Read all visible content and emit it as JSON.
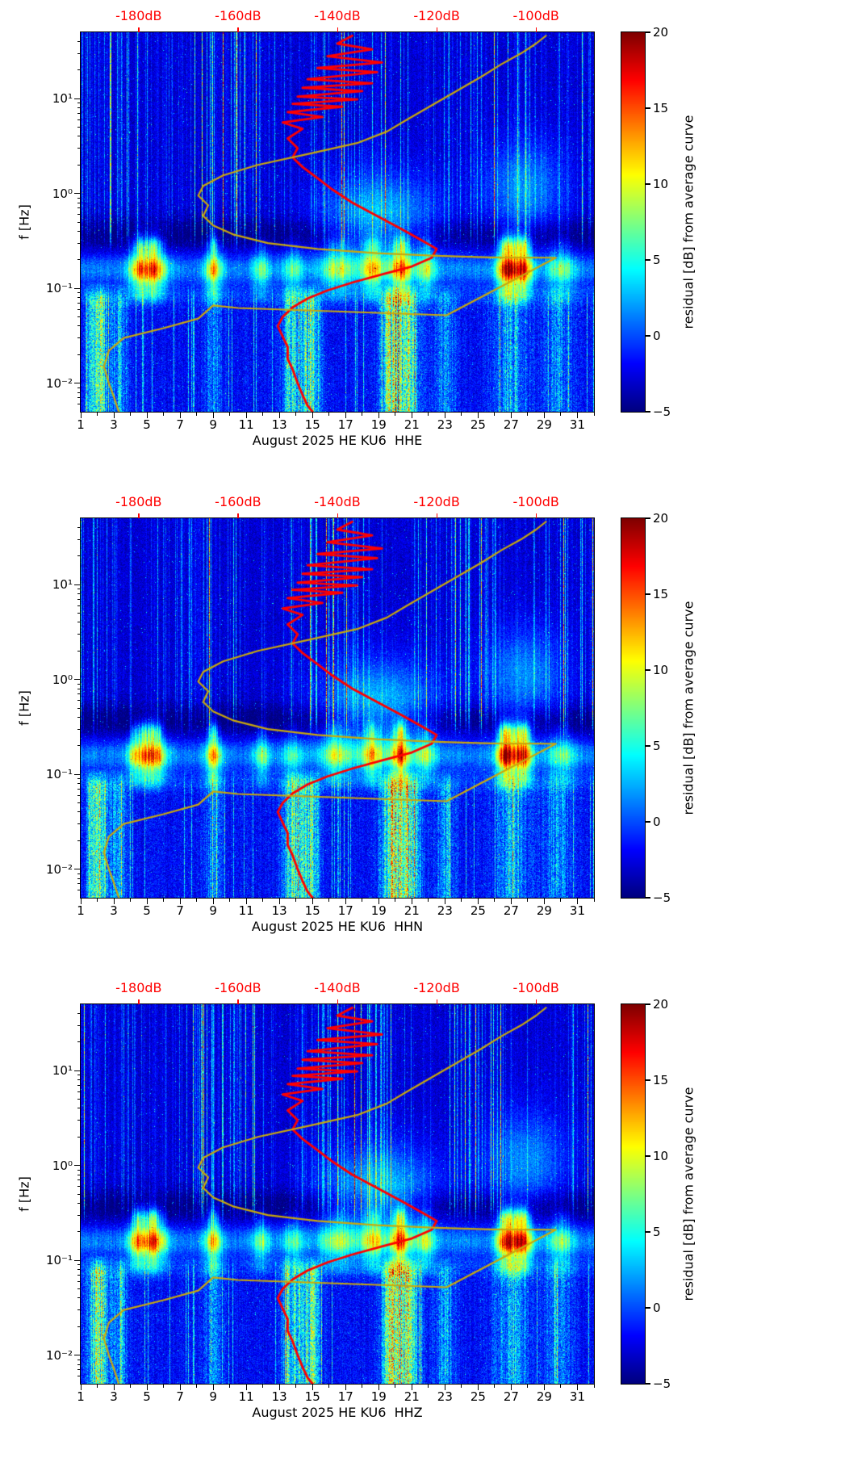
{
  "chart_data": {
    "type": "heatmap",
    "title": "",
    "description": "Three stacked residual spectrogram panels (channels HHE, HHN, HHZ) for station HE KU6, August 2025, with jet colormap residuals and two overlaid average power spectral density curves plotted against the top dB axis.",
    "panels": [
      {
        "channel": "HHE",
        "xlabel": "August 2025 HE KU6  HHE"
      },
      {
        "channel": "HHN",
        "xlabel": "August 2025 HE KU6  HHN"
      },
      {
        "channel": "HHZ",
        "xlabel": "August 2025 HE KU6  HHZ"
      }
    ],
    "x_axis": {
      "unit": "day of August 2025",
      "range": [
        1,
        32
      ],
      "tick_values": [
        1,
        3,
        5,
        7,
        9,
        11,
        13,
        15,
        17,
        19,
        21,
        23,
        25,
        27,
        29,
        31
      ],
      "tick_labels": [
        "1",
        "3",
        "5",
        "7",
        "9",
        "11",
        "13",
        "15",
        "17",
        "19",
        "21",
        "23",
        "25",
        "27",
        "29",
        "31"
      ]
    },
    "y_axis": {
      "label": "f [Hz]",
      "scale": "log",
      "range": [
        0.005,
        50
      ],
      "tick_values": [
        10,
        1,
        0.1,
        0.01
      ],
      "tick_labels": [
        "10¹",
        "10⁰",
        "10⁻¹",
        "10⁻²"
      ]
    },
    "top_axis": {
      "color": "#ff0000",
      "unit": "dB",
      "tick_values": [
        -180,
        -160,
        -140,
        -120,
        -100
      ],
      "tick_labels": [
        "-180dB",
        "-160dB",
        "-140dB",
        "-120dB",
        "-100dB"
      ],
      "day_at_minus180dB": 4.5,
      "days_per_20dB": 6
    },
    "colorbar": {
      "label": "residual [dB] from average curve",
      "range": [
        -5,
        20
      ],
      "tick_values": [
        20,
        15,
        10,
        5,
        0,
        -5
      ],
      "tick_labels": [
        "20",
        "15",
        "10",
        "5",
        "0",
        "−5"
      ],
      "colormap": "jet"
    },
    "heatmap": {
      "value_unit": "residual dB from average curve",
      "background_level_db": -3,
      "microseism_band_hz": [
        0.1,
        0.3
      ],
      "storm_peak_days": [
        5,
        9,
        20,
        27
      ],
      "quiet_trough_hz": [
        0.3,
        0.8
      ],
      "low_freq_bright_column_days": [
        2,
        14,
        20,
        27
      ]
    },
    "curves": [
      {
        "name": "average-spectrum-red",
        "color": "#ff0000",
        "x_axis": "top dB axis",
        "points": [
          [
            -137,
            46
          ],
          [
            -140,
            38
          ],
          [
            -133,
            33
          ],
          [
            -142,
            28
          ],
          [
            -131,
            24
          ],
          [
            -144,
            21
          ],
          [
            -132,
            19
          ],
          [
            -146,
            16
          ],
          [
            -133,
            14.5
          ],
          [
            -147,
            13
          ],
          [
            -135,
            12
          ],
          [
            -148,
            10.5
          ],
          [
            -136,
            9.8
          ],
          [
            -149,
            8.8
          ],
          [
            -139,
            8.2
          ],
          [
            -150,
            7.2
          ],
          [
            -143,
            6.4
          ],
          [
            -151,
            5.6
          ],
          [
            -147,
            4.8
          ],
          [
            -150,
            3.8
          ],
          [
            -148,
            3.0
          ],
          [
            -149,
            2.4
          ],
          [
            -147,
            1.9
          ],
          [
            -144,
            1.45
          ],
          [
            -141,
            1.1
          ],
          [
            -137,
            0.8
          ],
          [
            -132,
            0.58
          ],
          [
            -127,
            0.42
          ],
          [
            -123,
            0.32
          ],
          [
            -120,
            0.26
          ],
          [
            -121,
            0.21
          ],
          [
            -125,
            0.17
          ],
          [
            -131,
            0.14
          ],
          [
            -137,
            0.115
          ],
          [
            -142,
            0.095
          ],
          [
            -146,
            0.078
          ],
          [
            -149,
            0.063
          ],
          [
            -151,
            0.05
          ],
          [
            -152,
            0.04
          ],
          [
            -151,
            0.031
          ],
          [
            -150,
            0.024
          ],
          [
            -150,
            0.018
          ],
          [
            -149,
            0.014
          ],
          [
            -148,
            0.01
          ],
          [
            -147,
            0.0075
          ],
          [
            -146,
            0.0058
          ],
          [
            -145,
            0.005
          ]
        ]
      },
      {
        "name": "reference-spectrum-yellow",
        "color": "#c9a80c",
        "x_axis": "top dB axis",
        "points": [
          [
            -98,
            46
          ],
          [
            -100,
            38
          ],
          [
            -103,
            30
          ],
          [
            -107,
            23
          ],
          [
            -111,
            17
          ],
          [
            -116,
            12
          ],
          [
            -121,
            8.5
          ],
          [
            -126,
            6
          ],
          [
            -130,
            4.5
          ],
          [
            -136,
            3.4
          ],
          [
            -146,
            2.6
          ],
          [
            -156,
            2.0
          ],
          [
            -163,
            1.55
          ],
          [
            -167,
            1.2
          ],
          [
            -168,
            0.95
          ],
          [
            -166,
            0.75
          ],
          [
            -167,
            0.58
          ],
          [
            -165,
            0.46
          ],
          [
            -161,
            0.37
          ],
          [
            -154,
            0.3
          ],
          [
            -144,
            0.26
          ],
          [
            -132,
            0.235
          ],
          [
            -120,
            0.22
          ],
          [
            -109,
            0.212
          ],
          [
            -96,
            0.21
          ],
          [
            -118,
            0.052
          ],
          [
            -160,
            0.062
          ],
          [
            -165,
            0.066
          ],
          [
            -168,
            0.048
          ],
          [
            -175,
            0.038
          ],
          [
            -183,
            0.03
          ],
          [
            -186,
            0.022
          ],
          [
            -187,
            0.015
          ],
          [
            -186,
            0.01
          ],
          [
            -185,
            0.0072
          ],
          [
            -184,
            0.005
          ]
        ]
      }
    ]
  }
}
